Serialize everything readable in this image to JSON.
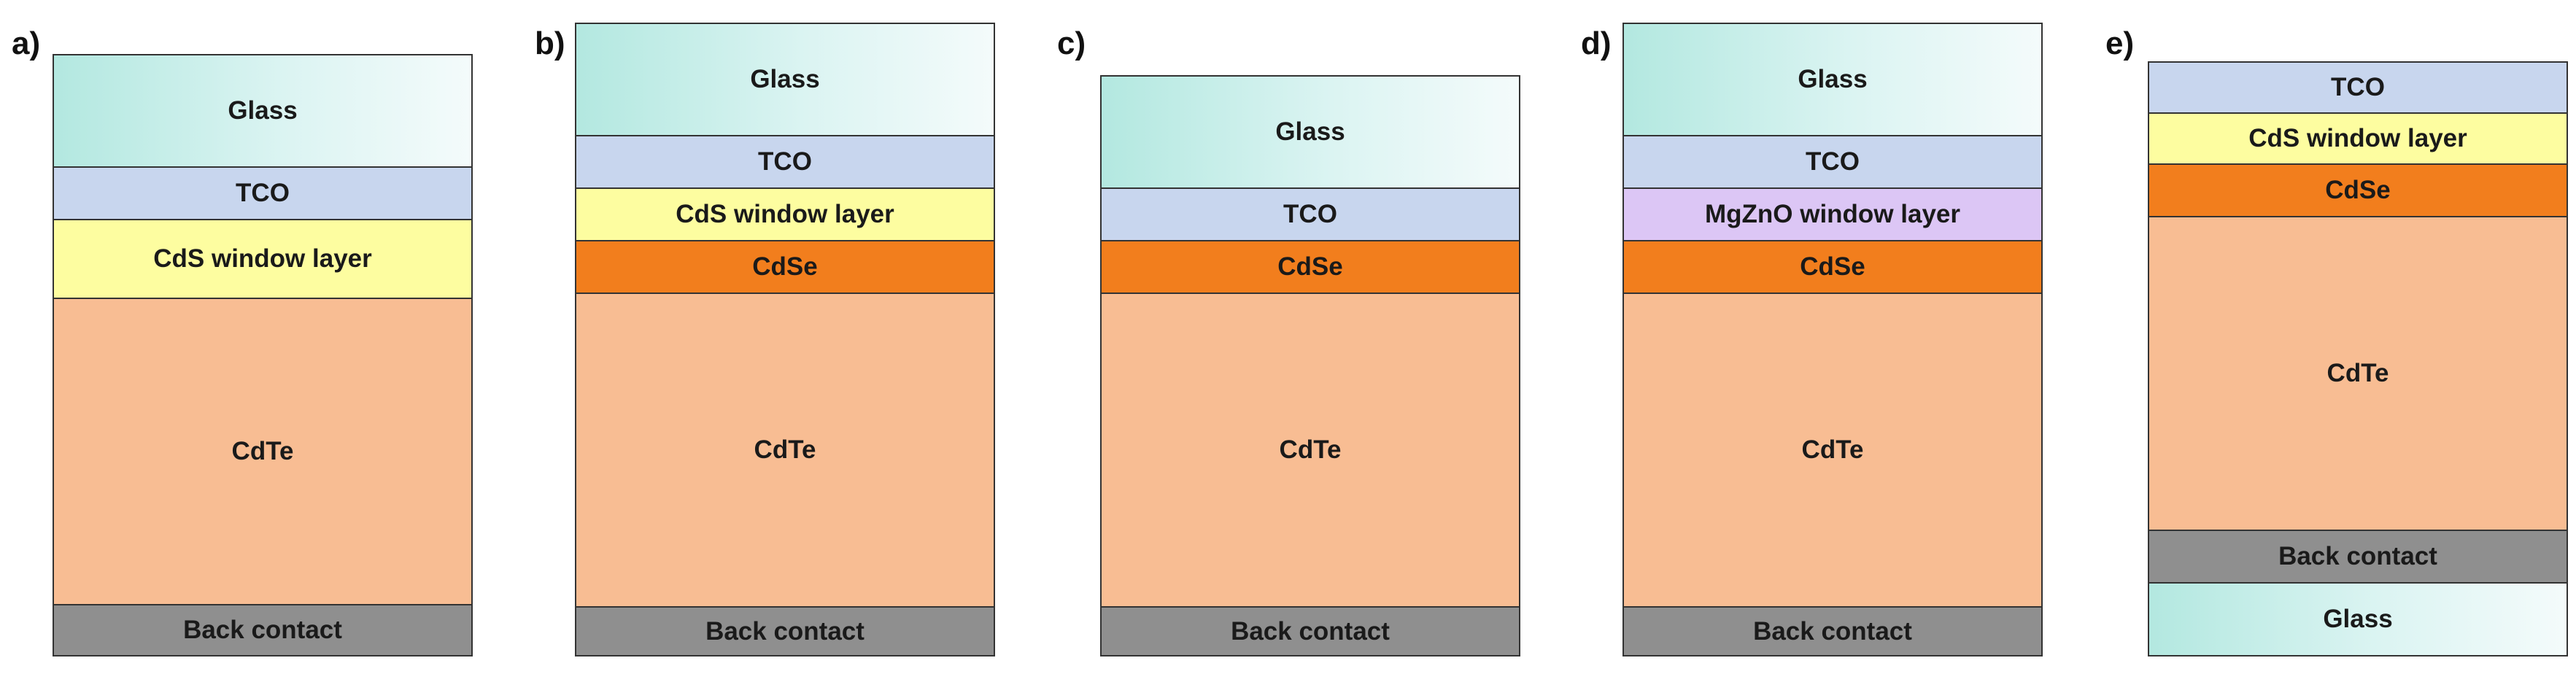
{
  "panels": [
    {
      "label": "a)",
      "layers": [
        {
          "key": "glass",
          "text": "Glass"
        },
        {
          "key": "tco",
          "text": "TCO"
        },
        {
          "key": "cds",
          "text": "CdS window layer"
        },
        {
          "key": "cdte",
          "text": "CdTe"
        },
        {
          "key": "back",
          "text": "Back contact"
        }
      ]
    },
    {
      "label": "b)",
      "layers": [
        {
          "key": "glass",
          "text": "Glass"
        },
        {
          "key": "tco",
          "text": "TCO"
        },
        {
          "key": "cds",
          "text": "CdS window layer"
        },
        {
          "key": "cdse",
          "text": "CdSe"
        },
        {
          "key": "cdte",
          "text": "CdTe"
        },
        {
          "key": "back",
          "text": "Back contact"
        }
      ]
    },
    {
      "label": "c)",
      "layers": [
        {
          "key": "glass",
          "text": "Glass"
        },
        {
          "key": "tco",
          "text": "TCO"
        },
        {
          "key": "cdse",
          "text": "CdSe"
        },
        {
          "key": "cdte",
          "text": "CdTe"
        },
        {
          "key": "back",
          "text": "Back contact"
        }
      ]
    },
    {
      "label": "d)",
      "layers": [
        {
          "key": "glass",
          "text": "Glass"
        },
        {
          "key": "tco",
          "text": "TCO"
        },
        {
          "key": "mgzno",
          "text": "MgZnO window layer"
        },
        {
          "key": "cdse",
          "text": "CdSe"
        },
        {
          "key": "cdte",
          "text": "CdTe"
        },
        {
          "key": "back",
          "text": "Back contact"
        }
      ]
    },
    {
      "label": "e)",
      "layers": [
        {
          "key": "tco",
          "text": "TCO"
        },
        {
          "key": "cds",
          "text": "CdS window layer"
        },
        {
          "key": "cdse",
          "text": "CdSe"
        },
        {
          "key": "cdte",
          "text": "CdTe"
        },
        {
          "key": "back",
          "text": "Back contact"
        },
        {
          "key": "glass",
          "text": "Glass"
        }
      ]
    }
  ],
  "colors": {
    "glass": "#b3e8e0",
    "tco": "#c8d6ee",
    "cds_window": "#fdfda0",
    "mgzno_window": "#dcc6f5",
    "cdse": "#f27e1d",
    "cdte": "#f8bd93",
    "back_contact": "#8f8f8f",
    "border": "#333333"
  }
}
